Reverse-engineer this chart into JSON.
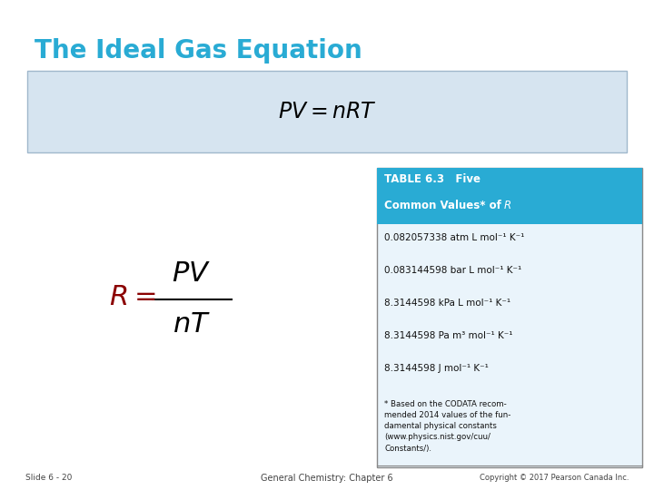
{
  "title": "The Ideal Gas Equation",
  "title_color": "#29ABD4",
  "bg_color": "#FFFFFF",
  "box_bg_color": "#D6E4F0",
  "box_border_color": "#A0B8CC",
  "table_header_bg": "#29ABD4",
  "table_header_color": "#FFFFFF",
  "table_bg": "#EAF4FB",
  "table_border_color": "#888888",
  "table_rows": [
    "0.082057338 atm L mol⁻¹ K⁻¹",
    "0.083144598 bar L mol⁻¹ K⁻¹",
    "8.3144598 kPa L mol⁻¹ K⁻¹",
    "8.3144598 Pa m³ mol⁻¹ K⁻¹",
    "8.3144598 J mol⁻¹ K⁻¹"
  ],
  "table_footnote": "* Based on the CODATA recom-\nmended 2014 values of the fun-\ndamental physical constants\n(www.physics.nist.gov/cuu/\nConstants/).",
  "footer_left": "Slide 6 - 20",
  "footer_center": "General Chemistry: Chapter 6",
  "footer_right": "Copyright © 2017 Pearson Canada Inc.",
  "R_color": "#8B0000",
  "eq_color": "#000000"
}
